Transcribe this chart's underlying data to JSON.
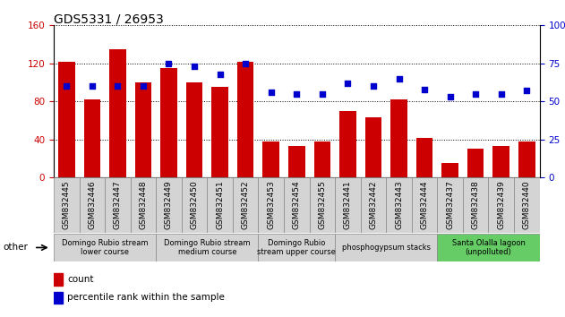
{
  "title": "GDS5331 / 26953",
  "samples": [
    "GSM832445",
    "GSM832446",
    "GSM832447",
    "GSM832448",
    "GSM832449",
    "GSM832450",
    "GSM832451",
    "GSM832452",
    "GSM832453",
    "GSM832454",
    "GSM832455",
    "GSM832441",
    "GSM832442",
    "GSM832443",
    "GSM832444",
    "GSM832437",
    "GSM832438",
    "GSM832439",
    "GSM832440"
  ],
  "counts": [
    122,
    82,
    135,
    100,
    115,
    100,
    95,
    122,
    38,
    33,
    38,
    70,
    63,
    82,
    42,
    15,
    30,
    33,
    38
  ],
  "percentiles": [
    60,
    60,
    60,
    60,
    75,
    73,
    68,
    75,
    56,
    55,
    55,
    62,
    60,
    65,
    58,
    53,
    55,
    55,
    57
  ],
  "bar_color": "#cc0000",
  "dot_color": "#0000cc",
  "ylim_left": [
    0,
    160
  ],
  "ylim_right": [
    0,
    100
  ],
  "yticks_left": [
    0,
    40,
    80,
    120,
    160
  ],
  "yticks_right": [
    0,
    25,
    50,
    75,
    100
  ],
  "groups": [
    {
      "label": "Domingo Rubio stream\nlower course",
      "start": 0,
      "end": 3,
      "color": "#d4d4d4"
    },
    {
      "label": "Domingo Rubio stream\nmedium course",
      "start": 4,
      "end": 7,
      "color": "#d4d4d4"
    },
    {
      "label": "Domingo Rubio\nstream upper course",
      "start": 8,
      "end": 10,
      "color": "#d4d4d4"
    },
    {
      "label": "phosphogypsum stacks",
      "start": 11,
      "end": 14,
      "color": "#d4d4d4"
    },
    {
      "label": "Santa Olalla lagoon\n(unpolluted)",
      "start": 15,
      "end": 18,
      "color": "#66cc66"
    }
  ],
  "plot_bg_color": "#ffffff",
  "tick_cell_color": "#d4d4d4",
  "title_fontsize": 10,
  "bar_label_fontsize": 6.5,
  "group_label_fontsize": 6.0,
  "axis_label_fontsize": 7.5
}
